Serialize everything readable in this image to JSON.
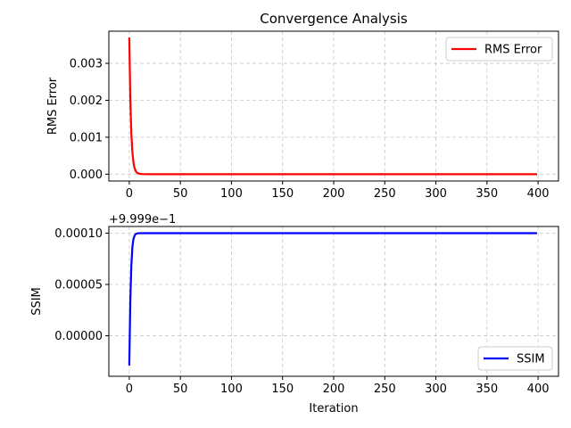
{
  "chart_data": [
    {
      "type": "line",
      "title": "Convergence Analysis",
      "xlabel": "",
      "ylabel": "RMS Error",
      "xlim": [
        -20,
        420
      ],
      "ylim": [
        -0.000185,
        0.00387
      ],
      "xticks": [
        0,
        50,
        100,
        150,
        200,
        250,
        300,
        350,
        400
      ],
      "xtick_labels": [
        "0",
        "50",
        "100",
        "150",
        "200",
        "250",
        "300",
        "350",
        "400"
      ],
      "yticks": [
        0,
        0.001,
        0.002,
        0.003
      ],
      "ytick_labels": [
        "0.000",
        "0.001",
        "0.002",
        "0.003"
      ],
      "grid": true,
      "legend": "top-right",
      "series": [
        {
          "name": "RMS Error",
          "color": "#ff0000",
          "x": [
            0,
            1,
            2,
            3,
            4,
            5,
            6,
            7,
            8,
            10,
            12,
            15,
            20,
            50,
            100,
            200,
            300,
            399
          ],
          "y": [
            0.0037,
            0.00204,
            0.00111,
            0.00061,
            0.00033,
            0.00018,
            0.0001,
            5.5e-05,
            3e-05,
            9e-06,
            3e-06,
            5e-07,
            0.0,
            0.0,
            0.0,
            0.0,
            0.0,
            0.0
          ]
        }
      ]
    },
    {
      "type": "line",
      "title": "",
      "xlabel": "Iteration",
      "ylabel": "SSIM",
      "offset_label": "+9.999e−1",
      "xlim": [
        -20,
        420
      ],
      "ylim": [
        -3.95e-05,
        0.0001065
      ],
      "xticks": [
        0,
        50,
        100,
        150,
        200,
        250,
        300,
        350,
        400
      ],
      "xtick_labels": [
        "0",
        "50",
        "100",
        "150",
        "200",
        "250",
        "300",
        "350",
        "400"
      ],
      "yticks": [
        0,
        5e-05,
        0.0001
      ],
      "ytick_labels": [
        "0.00000",
        "0.00005",
        "0.00010"
      ],
      "grid": true,
      "legend": "bottom-right",
      "series": [
        {
          "name": "SSIM",
          "color": "#0000ff",
          "x": [
            0,
            1,
            2,
            3,
            4,
            5,
            6,
            8,
            10,
            15,
            20,
            50,
            100,
            200,
            300,
            399
          ],
          "y": [
            -2.9e-05,
            3.4e-05,
            6.8e-05,
            8.6e-05,
            9.4e-05,
            9.7e-05,
            9.9e-05,
            9.98e-05,
            0.0001,
            0.0001,
            0.0001,
            0.0001,
            0.0001,
            0.0001,
            0.0001,
            0.0001
          ]
        }
      ]
    }
  ]
}
